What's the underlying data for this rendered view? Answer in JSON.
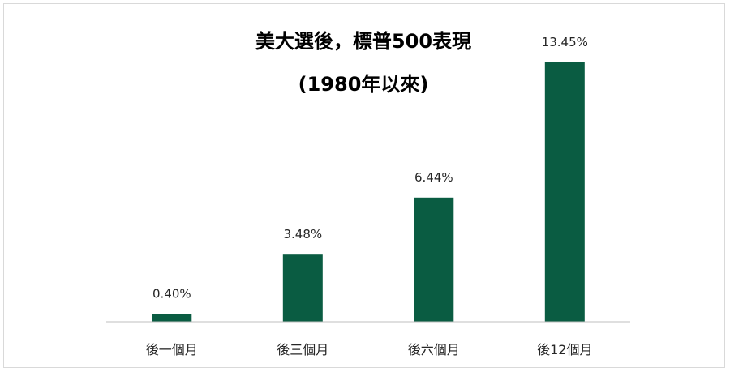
{
  "chart_data": {
    "type": "bar",
    "title_lines": [
      "美大選後，標普500表現",
      "(1980年以來)"
    ],
    "categories": [
      "後一個月",
      "後三個月",
      "後六個月",
      "後12個月"
    ],
    "values": [
      0.4,
      3.48,
      6.44,
      13.45
    ],
    "data_labels": [
      "0.40%",
      "3.48%",
      "6.44%",
      "13.45%"
    ],
    "unit": "%",
    "ylim": [
      0,
      14
    ],
    "grid": false,
    "legend": "none",
    "bar_color": "#0a5c42",
    "axis_color": "#bfbfbf"
  }
}
